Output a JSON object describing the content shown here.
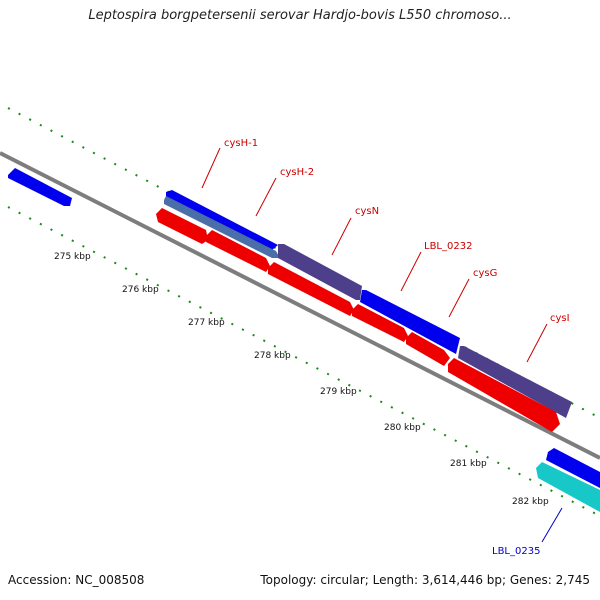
{
  "header": {
    "title": "Leptospira borgpetersenii serovar Hardjo-bovis L550 chromoso..."
  },
  "footer": {
    "accession": "Accession: NC_008508",
    "summary": "Topology: circular; Length: 3,614,446 bp; Genes: 2,745"
  },
  "map": {
    "scale_ticks": [
      "275 kbp",
      "276 kbp",
      "277 kbp",
      "278 kbp",
      "279 kbp",
      "280 kbp",
      "281 kbp",
      "282 kbp"
    ],
    "gene_labels": [
      "cysH-1",
      "cysH-2",
      "cysN",
      "LBL_0232",
      "cysG",
      "cysI",
      "LBL_0235"
    ],
    "colors": {
      "backbone": "#808080",
      "forward_gene": "#0000ee",
      "forward_gene_alt": "#4d3f8a",
      "reverse_gene": "#ee0000",
      "cyan_gene": "#18c8c8",
      "tick_green": "#1a8a1a",
      "label_red": "#cc0000",
      "label_blue": "#0000cc"
    }
  }
}
